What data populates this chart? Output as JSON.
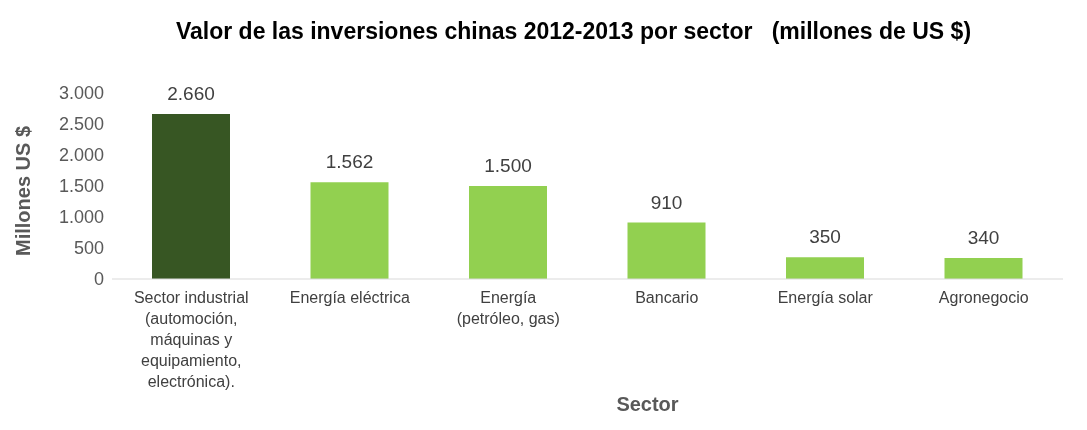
{
  "chart_data": {
    "type": "bar",
    "title": "Valor de las inversiones chinas 2012-2013 por sector   (millones de US $)",
    "xlabel": "Sector",
    "ylabel": "Millones US $",
    "categories": [
      "Sector industrial (automoción, máquinas y equipamiento, electrónica).",
      "Energía eléctrica",
      "Energía (petróleo, gas)",
      "Bancario",
      "Energía solar",
      "Agronegocio"
    ],
    "values": [
      2660,
      1562,
      1500,
      910,
      350,
      340
    ],
    "colors": [
      "#375623",
      "#92d050",
      "#92d050",
      "#92d050",
      "#92d050",
      "#92d050"
    ],
    "value_labels": [
      "2.660",
      "1.562",
      "1.500",
      "910",
      "350",
      "340"
    ],
    "ylim": [
      0,
      3000
    ],
    "yticks": [
      {
        "value": 0,
        "label": "0"
      },
      {
        "value": 500,
        "label": "500"
      },
      {
        "value": 1000,
        "label": "1.000"
      },
      {
        "value": 1500,
        "label": "1.500"
      },
      {
        "value": 2000,
        "label": "2.000"
      },
      {
        "value": 2500,
        "label": "2.500"
      },
      {
        "value": 3000,
        "label": "3.000"
      }
    ],
    "grid": false,
    "legend": false
  }
}
